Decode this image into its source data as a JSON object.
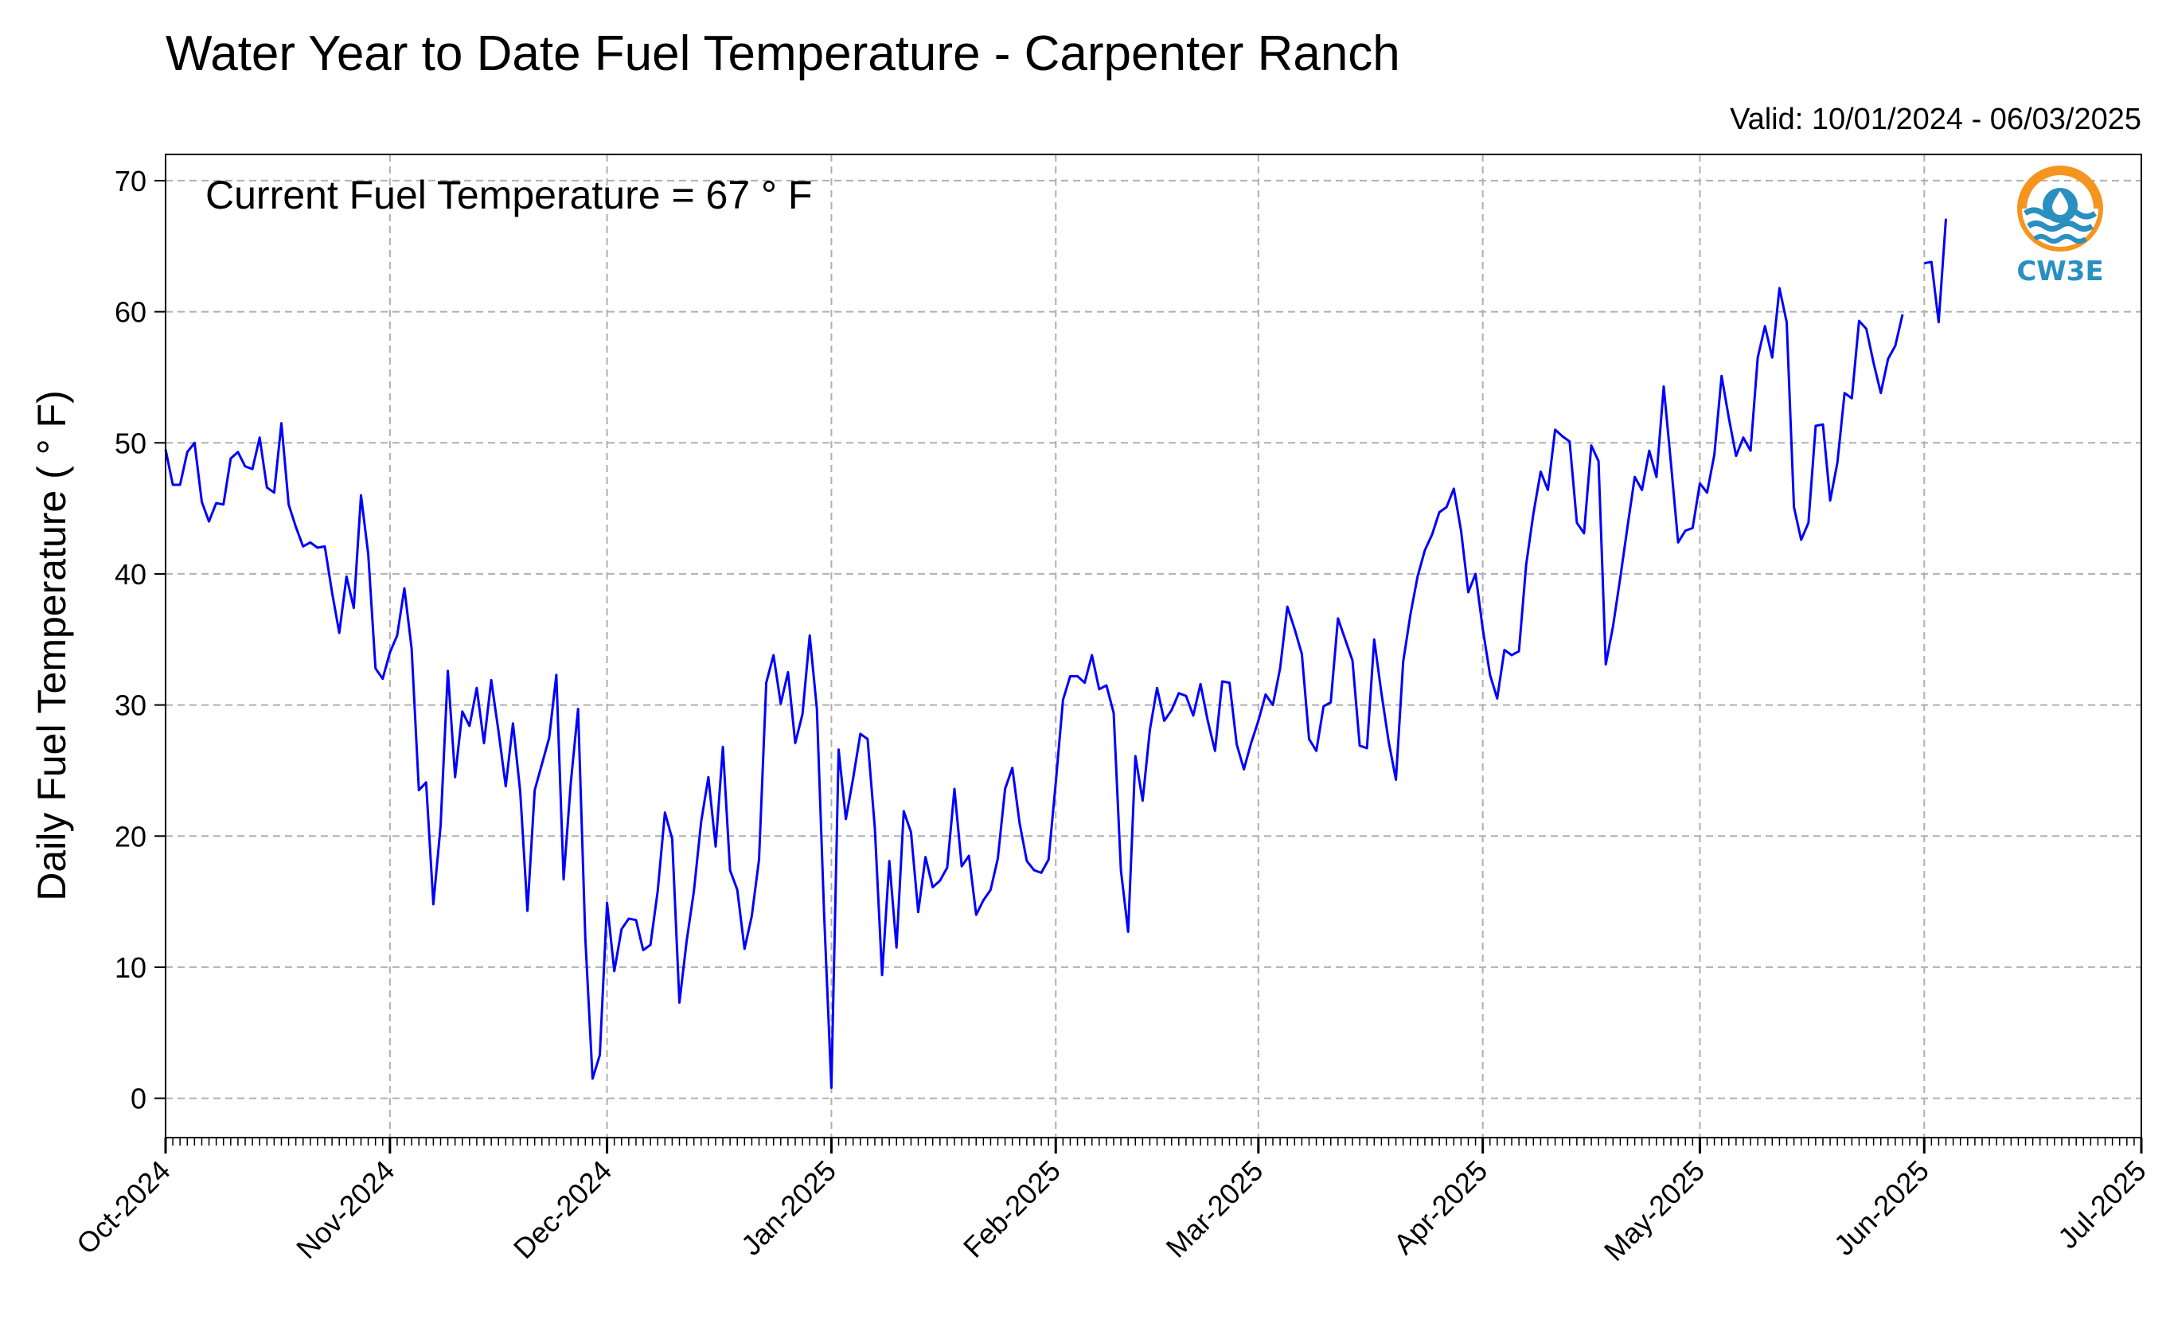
{
  "chart_data": {
    "type": "line",
    "title": "Water Year to Date Fuel Temperature - Carpenter Ranch",
    "subtitle": "Valid: 10/01/2024 - 06/03/2025",
    "annotation": "Current Fuel Temperature = 67 ° F",
    "ylabel": "Daily Fuel Temperature ( ° F)",
    "xlabel": "",
    "ylim": [
      -3,
      72
    ],
    "yticks": [
      0,
      10,
      20,
      30,
      40,
      50,
      60,
      70
    ],
    "xlim": [
      "2024-10-01",
      "2025-07-01"
    ],
    "xticks": [
      "Oct-2024",
      "Nov-2024",
      "Dec-2024",
      "Jan-2025",
      "Feb-2025",
      "Mar-2025",
      "Apr-2025",
      "May-2025",
      "Jun-2025",
      "Jul-2025"
    ],
    "grid": true,
    "line_color": "#0000ff",
    "series": [
      {
        "start_date": "2024-10-01",
        "values": [
          49.5,
          46.8,
          46.8,
          49.3,
          50.0,
          45.5,
          44.0,
          45.4,
          45.3,
          48.8,
          49.3,
          48.2,
          48.0,
          50.4,
          46.6,
          46.2,
          51.5,
          45.3,
          43.6,
          42.1,
          42.4,
          42.0,
          42.1,
          38.6,
          35.5,
          39.8,
          37.4,
          46.0,
          41.5,
          32.8,
          32.0,
          34.0,
          35.3,
          38.9,
          34.3,
          23.5,
          24.1,
          14.8,
          20.8,
          32.6,
          24.5,
          29.5,
          28.4,
          31.3,
          27.1,
          31.9,
          28.0,
          23.8,
          28.6,
          23.4,
          14.3,
          23.5,
          25.5,
          27.5,
          32.3,
          16.7,
          24.1,
          29.7,
          12.2,
          1.5,
          3.3,
          14.9,
          9.7,
          12.9,
          13.7,
          13.6,
          11.3,
          11.7,
          15.8,
          21.8,
          19.8,
          7.3,
          12.0,
          15.8,
          21.1,
          24.5,
          19.2,
          26.8,
          17.4,
          15.9,
          11.4,
          13.9,
          18.2,
          31.7,
          33.8,
          30.1,
          32.5,
          27.1,
          29.3,
          35.3,
          29.7,
          14.0,
          0.8,
          26.6,
          21.3,
          24.4,
          27.8,
          27.4,
          20.6,
          9.4,
          18.1,
          11.5,
          21.9,
          20.3,
          14.2,
          18.4,
          16.1,
          16.6,
          17.6,
          23.6,
          17.7,
          18.5,
          14.0,
          15.1,
          15.9,
          18.3,
          23.6,
          25.2,
          21.0,
          18.1,
          17.4,
          17.2,
          18.2,
          24.1,
          30.4,
          32.2,
          32.2,
          31.7,
          33.8,
          31.2,
          31.5,
          29.4,
          17.4,
          12.7,
          26.1,
          22.7,
          28.1,
          31.3,
          28.8,
          29.6,
          30.9,
          30.7,
          29.2,
          31.6,
          28.8,
          26.5,
          31.8,
          31.7,
          27.0,
          25.1,
          27.1,
          28.8,
          30.8,
          30.0,
          32.8,
          37.5,
          35.8,
          33.9,
          27.4,
          26.5,
          29.9,
          30.2,
          36.6,
          35.0,
          33.4,
          26.9,
          26.7,
          35.0,
          30.9,
          27.2,
          24.3,
          33.3,
          36.9,
          39.8,
          41.8,
          43.0,
          44.7,
          45.1,
          46.5,
          43.3,
          38.6,
          40.0,
          35.8,
          32.3,
          30.5,
          34.2,
          33.8,
          34.1,
          40.7,
          44.6,
          47.8,
          46.4,
          51.0,
          50.5,
          50.1,
          43.9,
          43.1,
          49.8,
          48.6,
          33.1,
          36.0,
          39.7,
          43.6,
          47.4,
          46.4,
          49.4,
          47.4,
          54.3,
          48.5,
          42.4,
          43.3,
          43.5,
          46.9,
          46.2,
          49.1,
          55.1,
          51.9,
          49.0,
          50.4,
          49.4,
          56.5,
          58.9,
          56.5,
          61.8,
          59.2,
          45.1,
          42.6,
          43.9,
          51.3,
          51.4,
          45.6,
          48.5,
          53.8,
          53.4,
          59.3,
          58.7,
          56.1,
          53.8,
          56.4,
          57.4,
          59.8,
          null,
          null,
          63.7,
          63.8,
          59.2,
          67.1
        ]
      }
    ]
  },
  "logo": {
    "text": "CW3E",
    "text_color": "#2a8fc1",
    "ring_color": "#f5941f",
    "wave_color": "#2a8fc1"
  }
}
